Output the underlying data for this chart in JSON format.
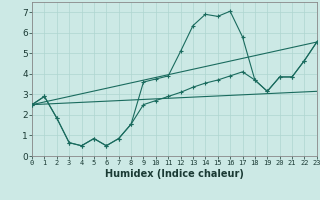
{
  "xlabel": "Humidex (Indice chaleur)",
  "xlim": [
    0,
    23
  ],
  "ylim": [
    0,
    7.5
  ],
  "xticks": [
    0,
    1,
    2,
    3,
    4,
    5,
    6,
    7,
    8,
    9,
    10,
    11,
    12,
    13,
    14,
    15,
    16,
    17,
    18,
    19,
    20,
    21,
    22,
    23
  ],
  "yticks": [
    0,
    1,
    2,
    3,
    4,
    5,
    6,
    7
  ],
  "background_color": "#cce9e5",
  "line_color": "#1a6b5e",
  "grid_color": "#afd6d0",
  "line1_x": [
    0,
    1,
    2,
    3,
    4,
    5,
    6,
    7,
    8,
    9,
    10,
    11,
    12,
    13,
    14,
    15,
    16,
    17,
    18,
    19,
    20,
    21,
    22,
    23
  ],
  "line1_y": [
    2.5,
    2.9,
    1.85,
    0.65,
    0.5,
    0.85,
    0.5,
    0.85,
    1.55,
    3.6,
    3.75,
    3.9,
    5.1,
    6.35,
    6.9,
    6.8,
    7.05,
    5.8,
    3.7,
    3.15,
    3.85,
    3.85,
    4.65,
    5.55
  ],
  "line2_x": [
    0,
    1,
    2,
    3,
    4,
    5,
    6,
    7,
    8,
    9,
    10,
    11,
    12,
    13,
    14,
    15,
    16,
    17,
    18,
    19,
    20,
    21,
    22,
    23
  ],
  "line2_y": [
    2.5,
    2.9,
    1.85,
    0.65,
    0.5,
    0.85,
    0.5,
    0.85,
    1.55,
    2.5,
    2.7,
    2.9,
    3.1,
    3.35,
    3.55,
    3.7,
    3.9,
    4.1,
    3.7,
    3.15,
    3.85,
    3.85,
    4.65,
    5.55
  ],
  "line3_x": [
    0,
    23
  ],
  "line3_y": [
    2.5,
    3.15
  ],
  "line4_x": [
    0,
    23
  ],
  "line4_y": [
    2.5,
    5.55
  ]
}
